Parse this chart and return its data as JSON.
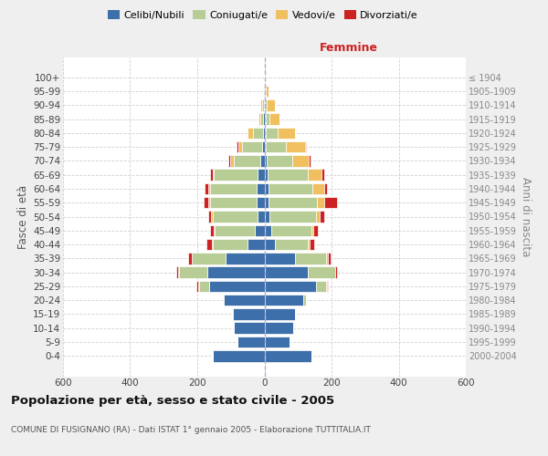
{
  "age_groups": [
    "0-4",
    "5-9",
    "10-14",
    "15-19",
    "20-24",
    "25-29",
    "30-34",
    "35-39",
    "40-44",
    "45-49",
    "50-54",
    "55-59",
    "60-64",
    "65-69",
    "70-74",
    "75-79",
    "80-84",
    "85-89",
    "90-94",
    "95-99",
    "100+"
  ],
  "birth_years": [
    "2000-2004",
    "1995-1999",
    "1990-1994",
    "1985-1989",
    "1980-1984",
    "1975-1979",
    "1970-1974",
    "1965-1969",
    "1960-1964",
    "1955-1959",
    "1950-1954",
    "1945-1949",
    "1940-1944",
    "1935-1939",
    "1930-1934",
    "1925-1929",
    "1920-1924",
    "1915-1919",
    "1910-1914",
    "1905-1909",
    "≤ 1904"
  ],
  "colors": {
    "celibi": "#3d6faa",
    "coniugati": "#b8cc96",
    "vedovi": "#f0c060",
    "divorziati": "#cc2222"
  },
  "males": {
    "celibi": [
      155,
      80,
      90,
      95,
      120,
      165,
      170,
      115,
      50,
      28,
      20,
      22,
      22,
      20,
      12,
      8,
      5,
      3,
      2,
      1,
      1
    ],
    "coniugati": [
      0,
      1,
      2,
      2,
      5,
      30,
      85,
      100,
      105,
      120,
      135,
      140,
      140,
      130,
      80,
      60,
      30,
      8,
      5,
      2,
      0
    ],
    "vedovi": [
      0,
      0,
      0,
      0,
      0,
      2,
      2,
      1,
      2,
      2,
      3,
      5,
      5,
      5,
      10,
      10,
      15,
      8,
      5,
      2,
      0
    ],
    "divorziati": [
      0,
      0,
      0,
      0,
      0,
      5,
      5,
      10,
      15,
      12,
      10,
      15,
      10,
      8,
      5,
      5,
      0,
      0,
      0,
      0,
      0
    ]
  },
  "females": {
    "nubili": [
      140,
      75,
      85,
      90,
      115,
      155,
      130,
      90,
      30,
      20,
      15,
      12,
      12,
      10,
      8,
      5,
      4,
      3,
      2,
      1,
      1
    ],
    "coniugate": [
      0,
      1,
      2,
      2,
      10,
      30,
      80,
      95,
      100,
      120,
      140,
      145,
      130,
      120,
      75,
      60,
      35,
      12,
      6,
      2,
      0
    ],
    "vedove": [
      0,
      0,
      0,
      0,
      0,
      2,
      2,
      3,
      5,
      5,
      10,
      20,
      35,
      40,
      50,
      55,
      52,
      30,
      22,
      8,
      2
    ],
    "divorziate": [
      0,
      0,
      0,
      0,
      0,
      2,
      4,
      8,
      14,
      14,
      14,
      40,
      10,
      8,
      5,
      5,
      0,
      0,
      0,
      0,
      0
    ]
  },
  "title": "Popolazione per età, sesso e stato civile - 2005",
  "subtitle": "COMUNE DI FUSIGNANO (RA) - Dati ISTAT 1° gennaio 2005 - Elaborazione TUTTITALIA.IT",
  "ylabel_left": "Fasce di età",
  "ylabel_right": "Anni di nascita",
  "xlabel_right": "Femmine",
  "xlim": 600,
  "bg_color": "#efefef",
  "plot_bg": "#ffffff",
  "grid_color": "#cccccc"
}
